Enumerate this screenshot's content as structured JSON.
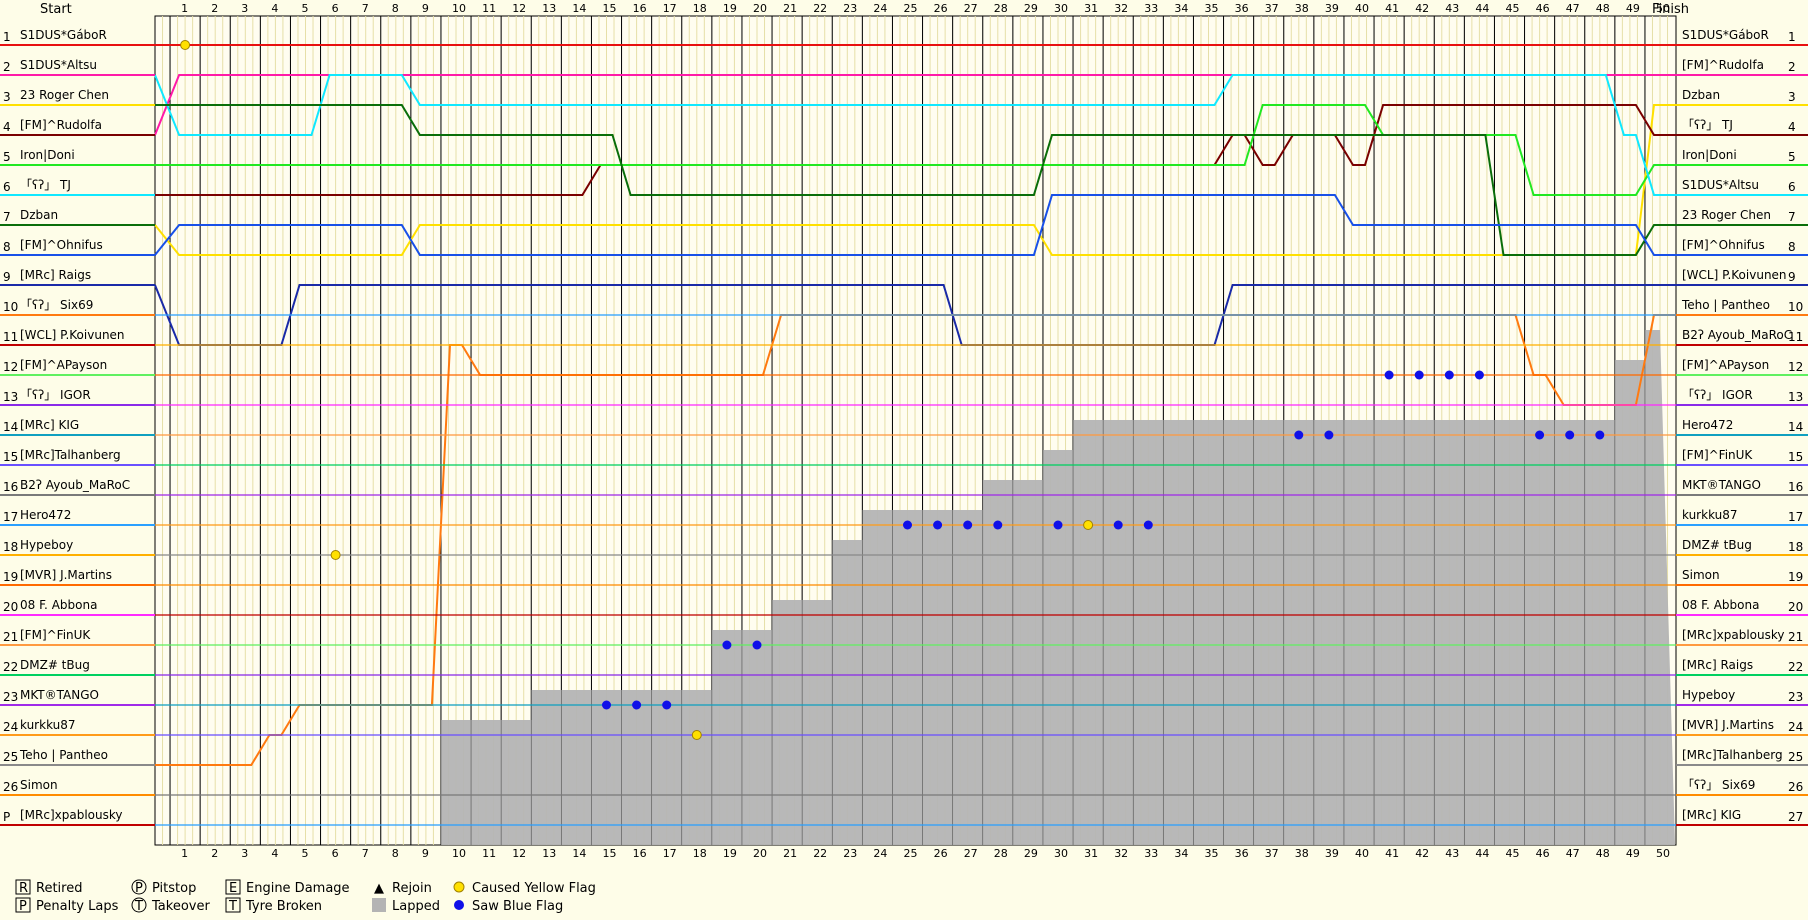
{
  "header": {
    "start": "Start",
    "finish": "Finish"
  },
  "chart_data": {
    "type": "line",
    "title": "",
    "laps": 50,
    "x_ticks": [
      1,
      2,
      3,
      4,
      5,
      6,
      7,
      8,
      9,
      10,
      11,
      12,
      13,
      14,
      15,
      16,
      17,
      18,
      19,
      20,
      21,
      22,
      23,
      24,
      25,
      26,
      27,
      28,
      29,
      30,
      31,
      32,
      33,
      34,
      35,
      36,
      37,
      38,
      39,
      40,
      41,
      42,
      43,
      44,
      45,
      46,
      47,
      48,
      49,
      50
    ],
    "start_positions": [
      "1",
      "2",
      "3",
      "4",
      "5",
      "6",
      "7",
      "8",
      "9",
      "10",
      "11",
      "12",
      "13",
      "14",
      "15",
      "16",
      "17",
      "18",
      "19",
      "20",
      "21",
      "22",
      "23",
      "24",
      "25",
      "26",
      "P"
    ],
    "finish_positions": [
      "1",
      "2",
      "3",
      "4",
      "5",
      "6",
      "7",
      "8",
      "9",
      "10",
      "11",
      "12",
      "13",
      "14",
      "15",
      "16",
      "17",
      "18",
      "19",
      "20",
      "21",
      "22",
      "23",
      "24",
      "25",
      "26",
      "27"
    ],
    "finish_positions_lapped": [
      "18",
      "19",
      "20",
      "21",
      "22",
      "23",
      "24",
      "25",
      "26",
      "27"
    ],
    "start_order": [
      "S1DUS*GáboR",
      "S1DUS*Altsu",
      "23 Roger Chen",
      "[FM]^Rudolfa",
      "Iron|Doni",
      "「ʕʔ」 TJ",
      "Dzban",
      "[FM]^Ohnifus",
      "[MRc] Raigs",
      "「ʕʔ」 Six69",
      "[WCL] P.Koivunen",
      "[FM]^APayson",
      "「ʕʔ」 IGOR",
      "[MRc] KIG",
      "[MRc]Talhanberg",
      "B2ʔ Ayoub_MaRoC",
      "Hero472",
      "Hypeboy",
      "[MVR] J.Martins",
      "08 F. Abbona",
      "[FM]^FinUK",
      "DMZ# tBug",
      "MKT®TANGO",
      "kurkku87",
      "Teho | Pantheo",
      "Simon",
      "[MRc]xpablousky"
    ],
    "finish_order": [
      "S1DUS*GáboR",
      "[FM]^Rudolfa",
      "Dzban",
      "「ʕʔ」 TJ",
      "Iron|Doni",
      "S1DUS*Altsu",
      "23 Roger Chen",
      "[FM]^Ohnifus",
      "[WCL] P.Koivunen",
      "Teho | Pantheo",
      "B2ʔ Ayoub_MaRoC",
      "[FM]^APayson",
      "「ʕʔ」 IGOR",
      "Hero472",
      "[FM]^FinUK",
      "MKT®TANGO",
      "kurkku87",
      "DMZ# tBug",
      "Simon",
      "08 F. Abbona",
      "[MRc]xpablousky",
      "[MRc] Raigs",
      "Hypeboy",
      "[MVR] J.Martins",
      "[MRc]Talhanberg",
      "「ʕʔ」 Six69",
      "[MRc] KIG"
    ],
    "series": [
      {
        "color": "#e81010",
        "values": [
          1,
          1,
          1,
          1,
          1,
          1,
          1,
          1,
          1,
          1,
          1,
          1,
          1,
          1,
          1,
          1,
          1,
          1,
          1,
          1,
          1,
          1,
          1,
          1,
          1,
          1,
          1,
          1,
          1,
          1,
          1,
          1,
          1,
          1,
          1,
          1,
          1,
          1,
          1,
          1,
          1,
          1,
          1,
          1,
          1,
          1,
          1,
          1,
          1,
          1,
          1
        ]
      },
      {
        "color": "#ff1aa8",
        "values": [
          4,
          2,
          2,
          2,
          2,
          2,
          2,
          2,
          2,
          2,
          2,
          2,
          2,
          2,
          2,
          2,
          2,
          2,
          2,
          2,
          2,
          2,
          2,
          2,
          2,
          2,
          2,
          2,
          2,
          2,
          2,
          2,
          2,
          2,
          2,
          2,
          2,
          2,
          2,
          2,
          2,
          2,
          2,
          2,
          2,
          2,
          2,
          2,
          2,
          2,
          2
        ]
      },
      {
        "color": "#ffe000",
        "values": [
          7,
          8,
          8,
          8,
          8,
          8,
          8,
          8,
          8,
          7,
          7,
          7,
          7,
          7,
          7,
          7,
          7,
          7,
          7,
          7,
          7,
          7,
          7,
          7,
          7,
          7,
          7,
          7,
          7,
          7,
          8,
          8,
          8,
          8,
          8,
          8,
          8,
          8,
          8,
          8,
          8,
          8,
          8,
          8,
          8,
          8,
          8,
          8,
          8,
          8,
          3
        ]
      },
      {
        "color": "#7a0000",
        "values": [
          6,
          6,
          6,
          6,
          6,
          6,
          6,
          6,
          6,
          6,
          6,
          6,
          6,
          6,
          6,
          5,
          5,
          5,
          5,
          5,
          5,
          5,
          5,
          5,
          5,
          5,
          5,
          5,
          5,
          5,
          5,
          5,
          5,
          5,
          5,
          5,
          4,
          5,
          4,
          4,
          5,
          3,
          3,
          3,
          3,
          3,
          3,
          3,
          3,
          3,
          4
        ]
      },
      {
        "color": "#22e822",
        "values": [
          5,
          5,
          5,
          5,
          5,
          5,
          5,
          5,
          5,
          5,
          5,
          5,
          5,
          5,
          5,
          5,
          5,
          5,
          5,
          5,
          5,
          5,
          5,
          5,
          5,
          5,
          5,
          5,
          5,
          5,
          5,
          5,
          5,
          5,
          5,
          5,
          5,
          3,
          3,
          3,
          3,
          4,
          4,
          4,
          4,
          4,
          6,
          6,
          6,
          6,
          5
        ]
      },
      {
        "color": "#10e8ff",
        "values": [
          2,
          4,
          4,
          4,
          4,
          4,
          2,
          2,
          2,
          3,
          3,
          3,
          3,
          3,
          3,
          3,
          3,
          3,
          3,
          3,
          3,
          3,
          3,
          3,
          3,
          3,
          3,
          3,
          3,
          3,
          3,
          3,
          3,
          3,
          3,
          3,
          2,
          2,
          2,
          2,
          2,
          2,
          2,
          2,
          2,
          2,
          2,
          2,
          2,
          4,
          6
        ]
      },
      {
        "color": "#0a6e0a",
        "values": [
          3,
          3,
          3,
          3,
          3,
          3,
          3,
          3,
          3,
          4,
          4,
          4,
          4,
          4,
          4,
          4,
          6,
          6,
          6,
          6,
          6,
          6,
          6,
          6,
          6,
          6,
          6,
          6,
          6,
          6,
          4,
          4,
          4,
          4,
          4,
          4,
          4,
          4,
          4,
          4,
          4,
          4,
          4,
          4,
          4,
          8,
          8,
          8,
          8,
          8,
          7
        ]
      },
      {
        "color": "#1850e8",
        "values": [
          8,
          7,
          7,
          7,
          7,
          7,
          7,
          7,
          7,
          8,
          8,
          8,
          8,
          8,
          8,
          8,
          8,
          8,
          8,
          8,
          8,
          8,
          8,
          8,
          8,
          8,
          8,
          8,
          8,
          8,
          6,
          6,
          6,
          6,
          6,
          6,
          6,
          6,
          6,
          6,
          7,
          7,
          7,
          7,
          7,
          7,
          7,
          7,
          7,
          7,
          8
        ]
      },
      {
        "color": "#1a2aa8",
        "values": [
          9,
          11,
          11,
          11,
          11,
          9,
          9,
          9,
          9,
          9,
          9,
          9,
          9,
          9,
          9,
          9,
          9,
          9,
          9,
          9,
          9,
          9,
          9,
          9,
          9,
          9,
          9,
          11,
          11,
          11,
          11,
          11,
          11,
          11,
          11,
          11,
          9,
          9,
          9,
          9,
          9,
          9,
          9,
          9,
          9,
          9,
          9,
          9,
          9,
          9,
          9
        ]
      },
      {
        "color": "#ff7a10",
        "values": [
          25,
          25,
          25,
          25,
          24,
          23,
          23,
          23,
          23,
          23,
          11,
          12,
          12,
          12,
          12,
          12,
          12,
          12,
          12,
          12,
          12,
          10,
          10,
          10,
          10,
          10,
          10,
          10,
          10,
          10,
          10,
          10,
          10,
          10,
          10,
          10,
          10,
          10,
          10,
          10,
          10,
          10,
          10,
          10,
          10,
          10,
          12,
          13,
          13,
          13,
          10
        ]
      }
    ],
    "legend_markers": [
      {
        "symbol": "R",
        "label": "Retired"
      },
      {
        "symbol": "P",
        "label": "Pitstop"
      },
      {
        "symbol": "E",
        "label": "Engine Damage"
      },
      {
        "symbol": "▲",
        "label": "Rejoin"
      },
      {
        "symbol": "●",
        "label": "Caused Yellow Flag"
      },
      {
        "symbol": "P",
        "label": "Penalty Laps"
      },
      {
        "symbol": "T",
        "label": "Takeover"
      },
      {
        "symbol": "T",
        "label": "Tyre Broken"
      },
      {
        "symbol": "■",
        "label": "Lapped"
      },
      {
        "symbol": "●",
        "label": "Saw Blue Flag"
      }
    ],
    "lapped_steps": [
      [
        10,
        24
      ],
      [
        13,
        23
      ],
      [
        19,
        21
      ],
      [
        21,
        20
      ],
      [
        23,
        18
      ],
      [
        24,
        17
      ],
      [
        26,
        17
      ],
      [
        28,
        16
      ],
      [
        30,
        15
      ],
      [
        31,
        14
      ],
      [
        33,
        14
      ],
      [
        40,
        14
      ],
      [
        46,
        14
      ],
      [
        49,
        12
      ],
      [
        50,
        11
      ]
    ],
    "colors": {
      "background": "#fefde8",
      "lapped": "#b4b4b4",
      "blue_flag": "#1010e8",
      "yellow_flag": "#ffe000"
    }
  }
}
